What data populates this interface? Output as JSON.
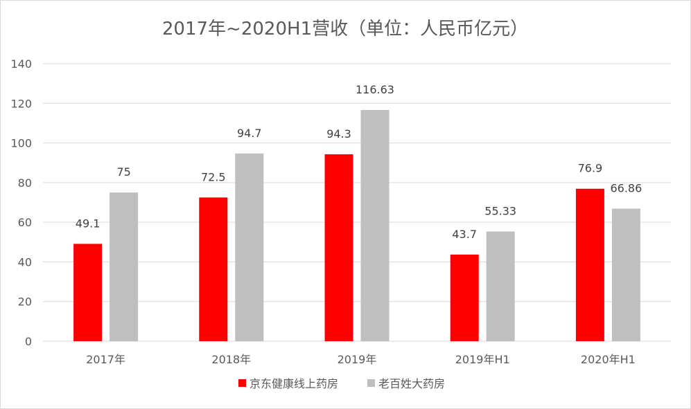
{
  "chart_data": {
    "type": "bar",
    "title": "2017年~2020H1营收（单位：人民币亿元）",
    "categories": [
      "2017年",
      "2018年",
      "2019年",
      "2019年H1",
      "2020年H1"
    ],
    "series": [
      {
        "name": "京东健康线上药房",
        "color": "#ff0000",
        "values": [
          49.1,
          72.5,
          94.3,
          43.7,
          76.9
        ],
        "labels": [
          "49.1",
          "72.5",
          "94.3",
          "43.7",
          "76.9"
        ]
      },
      {
        "name": "老百姓大药房",
        "color": "#bfbfbf",
        "values": [
          75,
          94.7,
          116.63,
          55.33,
          66.86
        ],
        "labels": [
          "75",
          "94.7",
          "116.63",
          "55.33",
          "66.86"
        ]
      }
    ],
    "yticks": [
      "0",
      "20",
      "40",
      "60",
      "80",
      "100",
      "120",
      "140"
    ],
    "ylim": [
      0,
      140
    ],
    "grid": true,
    "legend_position": "bottom",
    "gridline_color": "#d9d9d9"
  }
}
